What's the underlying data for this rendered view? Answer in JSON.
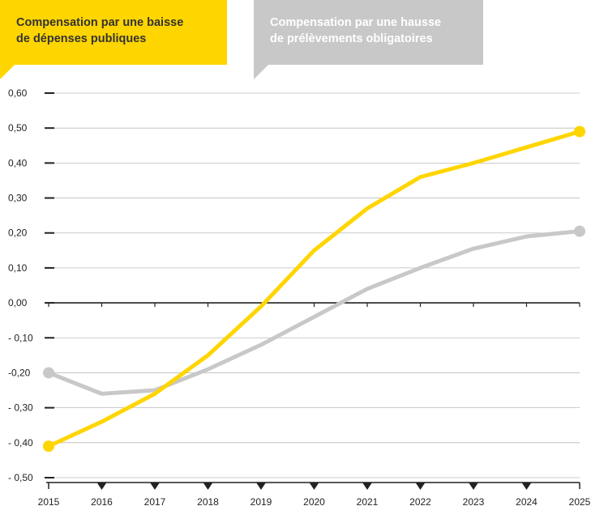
{
  "legend": {
    "yellow": {
      "line1": "Compensation par une baisse",
      "line2": "de dépenses publiques"
    },
    "grey": {
      "line1": "Compensation par une hausse",
      "line2": "de prélèvements obligatoires"
    }
  },
  "colors": {
    "yellow": "#FFD500",
    "grey": "#C8C8C8",
    "grid": "#BBBBBB",
    "axis": "#222222",
    "legend_text_dark": "#333333"
  },
  "chart_data": {
    "type": "line",
    "title": "",
    "xlabel": "",
    "ylabel": "",
    "x": [
      2015,
      2016,
      2017,
      2018,
      2019,
      2020,
      2021,
      2022,
      2023,
      2024,
      2025
    ],
    "x_tick_labels": [
      "2015",
      "2016",
      "2017",
      "2018",
      "2019",
      "2020",
      "2021",
      "2022",
      "2023",
      "2024",
      "2025"
    ],
    "ylim": [
      -0.5,
      0.6
    ],
    "y_ticks": [
      0.6,
      0.5,
      0.4,
      0.3,
      0.2,
      0.1,
      0.0,
      -0.1,
      -0.2,
      -0.3,
      -0.4,
      -0.5
    ],
    "y_tick_labels": [
      "0,60",
      "0,50",
      "0,40",
      "0,30",
      "0,20",
      "0,10",
      "0,00",
      "- 0,10",
      "-0,20",
      "- 0,30",
      "- 0,40",
      "- 0,50"
    ],
    "grid": true,
    "legend_position": "top",
    "series": [
      {
        "name": "Compensation par une baisse de dépenses publiques",
        "color": "#FFD500",
        "values": [
          -0.41,
          -0.34,
          -0.26,
          -0.15,
          -0.01,
          0.15,
          0.27,
          0.36,
          0.4,
          0.445,
          0.49
        ]
      },
      {
        "name": "Compensation par une hausse de prélèvements obligatoires",
        "color": "#C8C8C8",
        "values": [
          -0.2,
          -0.26,
          -0.25,
          -0.19,
          -0.12,
          -0.04,
          0.04,
          0.1,
          0.155,
          0.19,
          0.205
        ]
      }
    ]
  }
}
